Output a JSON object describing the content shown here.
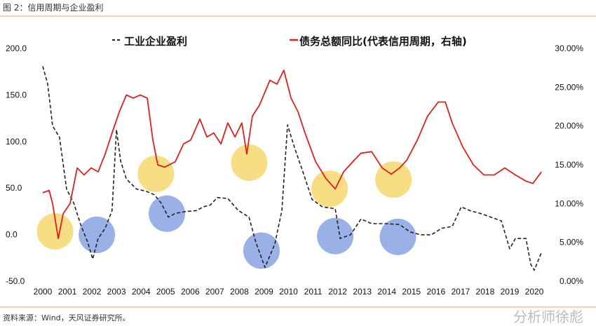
{
  "header": {
    "title": "图 2：信用周期与企业盈利"
  },
  "footer": {
    "source": "资料来源：Wind，天风证券研究所。",
    "watermark": "分析师徐彪"
  },
  "chart_data": {
    "type": "line",
    "title": "图 2：信用周期与企业盈利",
    "xlim": [
      2000,
      2020.4
    ],
    "x_ticks": [
      "2000",
      "2001",
      "2002",
      "2003",
      "2004",
      "2005",
      "2006",
      "2007",
      "2008",
      "2009",
      "2010",
      "2011",
      "2012",
      "2013",
      "2014",
      "2015",
      "2016",
      "2017",
      "2018",
      "2019",
      "2020"
    ],
    "y_left": {
      "lim": [
        -50,
        200
      ],
      "ticks": [
        "-50.0",
        "0.0",
        "50.0",
        "100.0",
        "150.0",
        "200.0"
      ],
      "tick_values": [
        -50,
        0,
        50,
        100,
        150,
        200
      ]
    },
    "y_right": {
      "lim": [
        0,
        30
      ],
      "ticks": [
        "0.00%",
        "5.00%",
        "10.00%",
        "15.00%",
        "20.00%",
        "25.00%",
        "30.00%"
      ],
      "tick_values": [
        0,
        5,
        10,
        15,
        20,
        25,
        30
      ]
    },
    "legend_position": "top",
    "series": [
      {
        "name": "工业企业盈利",
        "axis": "left",
        "style": "dashed",
        "color": "#222222",
        "x": [
          2000.0,
          2000.2,
          2000.4,
          2000.68,
          2000.97,
          2001.26,
          2001.54,
          2001.83,
          2002.03,
          2002.25,
          2002.54,
          2002.82,
          2003.0,
          2003.17,
          2003.4,
          2003.82,
          2004.19,
          2004.54,
          2004.82,
          2005.11,
          2005.39,
          2005.82,
          2006.25,
          2006.53,
          2006.82,
          2007.1,
          2007.53,
          2007.96,
          2008.39,
          2008.67,
          2009.04,
          2009.44,
          2009.73,
          2009.96,
          2010.24,
          2010.58,
          2010.96,
          2011.38,
          2011.9,
          2012.1,
          2012.52,
          2012.95,
          2013.38,
          2013.95,
          2014.52,
          2014.95,
          2015.38,
          2015.81,
          2016.23,
          2016.66,
          2017.03,
          2017.38,
          2017.8,
          2018.23,
          2018.66,
          2019.0,
          2019.23,
          2019.66,
          2019.86,
          2020.0,
          2020.29
        ],
        "y": [
          180,
          161,
          116,
          104,
          48,
          33,
          10,
          -9,
          -27,
          -5,
          6,
          25,
          112,
          78,
          59,
          48,
          46,
          42,
          33,
          18,
          22,
          24,
          25,
          29,
          31,
          39,
          38,
          25,
          18,
          -9,
          -36,
          -11,
          25,
          117,
          93,
          67,
          37,
          29,
          27,
          -5,
          -1,
          16,
          11,
          11,
          10,
          2,
          -1,
          -1,
          6,
          8,
          29,
          25,
          22,
          18,
          14,
          -16,
          -5,
          -5,
          -33,
          -39,
          -20
        ]
      },
      {
        "name": "债务总额同比(代表信用周期，右轴)",
        "axis": "right",
        "style": "solid",
        "color": "#e0201c",
        "x": [
          2000,
          2000.26,
          2000.4,
          2000.63,
          2000.83,
          2001.11,
          2001.4,
          2001.68,
          2001.97,
          2002.25,
          2002.54,
          2002.82,
          2003.11,
          2003.4,
          2003.68,
          2003.97,
          2004.25,
          2004.48,
          2004.68,
          2004.96,
          2005.39,
          2005.73,
          2006.02,
          2006.39,
          2006.68,
          2006.96,
          2007.25,
          2007.53,
          2007.82,
          2008.1,
          2008.3,
          2008.53,
          2008.82,
          2009.24,
          2009.53,
          2009.81,
          2010.1,
          2010.39,
          2010.67,
          2011.1,
          2011.53,
          2011.9,
          2012.24,
          2012.67,
          2012.95,
          2013.38,
          2013.81,
          2014.18,
          2014.52,
          2014.81,
          2015.24,
          2015.66,
          2016.09,
          2016.38,
          2016.66,
          2017.09,
          2017.52,
          2017.95,
          2018.37,
          2018.8,
          2019.23,
          2019.66,
          2019.94,
          2020.29
        ],
        "y": [
          11.3,
          11.6,
          9.9,
          5.4,
          8.6,
          9.9,
          14.5,
          13.6,
          14.5,
          14.0,
          16.3,
          19.0,
          21.7,
          23.9,
          23.5,
          23.9,
          23.5,
          18.1,
          14.9,
          14.6,
          15.3,
          17.6,
          18.1,
          20.8,
          18.5,
          19.0,
          17.6,
          20.3,
          18.5,
          20.3,
          16.3,
          21.2,
          22.6,
          25.8,
          25.3,
          27.1,
          23.5,
          21.7,
          19.0,
          15.3,
          13.1,
          11.8,
          14.0,
          15.5,
          16.4,
          16.6,
          14.5,
          13.7,
          14.5,
          15.5,
          18.1,
          21.2,
          23.0,
          23.0,
          20.3,
          17.2,
          14.9,
          13.6,
          13.6,
          14.5,
          13.6,
          12.8,
          12.5,
          14.0
        ]
      }
    ],
    "annotations": [
      {
        "shape": "circle",
        "color": "#f5d565",
        "x": 2000.5,
        "y": 2.7
      },
      {
        "shape": "circle",
        "color": "#f5d565",
        "x": 2004.6,
        "y": 64.5
      },
      {
        "shape": "circle",
        "color": "#f5d565",
        "x": 2008.4,
        "y": 76.5
      },
      {
        "shape": "circle",
        "color": "#f5d565",
        "x": 2011.67,
        "y": 48.5
      },
      {
        "shape": "circle",
        "color": "#f5d565",
        "x": 2014.27,
        "y": 58.3
      },
      {
        "shape": "circle",
        "color": "#7f9de0",
        "x": 2002.2,
        "y": -1
      },
      {
        "shape": "circle",
        "color": "#7f9de0",
        "x": 2005.05,
        "y": 21.7
      },
      {
        "shape": "circle",
        "color": "#7f9de0",
        "x": 2008.9,
        "y": -18
      },
      {
        "shape": "circle",
        "color": "#7f9de0",
        "x": 2011.9,
        "y": -2.4
      },
      {
        "shape": "circle",
        "color": "#7f9de0",
        "x": 2014.45,
        "y": -3.2
      }
    ]
  }
}
